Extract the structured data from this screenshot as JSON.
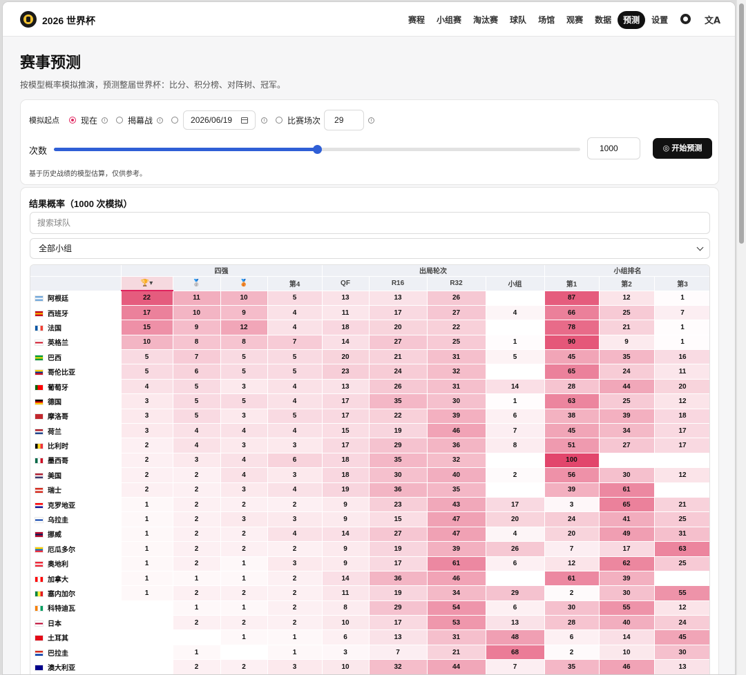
{
  "nav": {
    "brand": "2026 世界杯",
    "links": [
      "赛程",
      "小组赛",
      "淘汰赛",
      "球队",
      "场馆",
      "观赛",
      "数据",
      "预测",
      "设置"
    ],
    "active_index": 7
  },
  "page": {
    "title": "赛事预测",
    "subtitle": "按模型概率模拟推演，预测整届世界杯：比分、积分榜、对阵树、冠军。"
  },
  "controls": {
    "start_label": "模拟起点",
    "opt_now": "现在",
    "opt_opening": "揭幕战",
    "date_value": "2026/06/19",
    "opt_match": "比赛场次",
    "match_value": "29",
    "count_label": "次数",
    "count_value": "1000",
    "slider_fraction": 0.5,
    "start_button": "开始预测",
    "note": "基于历史战绩的模型估算，仅供参考。"
  },
  "results": {
    "title": "结果概率（1000 次模拟）",
    "search_placeholder": "搜索球队",
    "group_select": "全部小组",
    "group_headers": [
      "四强",
      "出局轮次",
      "小组排名"
    ],
    "col_headers": [
      "🏆▾",
      "🥈",
      "🥉",
      "第4",
      "QF",
      "R16",
      "R32",
      "小组",
      "第1",
      "第2",
      "第3"
    ],
    "rows": [
      {
        "team": "阿根廷",
        "flag": "AR",
        "v": [
          22,
          11,
          10,
          5,
          13,
          13,
          26,
          null,
          87,
          12,
          1
        ]
      },
      {
        "team": "西班牙",
        "flag": "ES",
        "v": [
          17,
          10,
          9,
          4,
          11,
          17,
          27,
          4,
          66,
          25,
          7
        ]
      },
      {
        "team": "法国",
        "flag": "FR",
        "v": [
          15,
          9,
          12,
          4,
          18,
          20,
          22,
          null,
          78,
          21,
          1
        ]
      },
      {
        "team": "英格兰",
        "flag": "EN",
        "v": [
          10,
          8,
          8,
          7,
          14,
          27,
          25,
          1,
          90,
          9,
          1
        ]
      },
      {
        "team": "巴西",
        "flag": "BR",
        "v": [
          5,
          7,
          5,
          5,
          20,
          21,
          31,
          5,
          45,
          35,
          16
        ]
      },
      {
        "team": "哥伦比亚",
        "flag": "CO",
        "v": [
          5,
          6,
          5,
          5,
          23,
          24,
          32,
          null,
          65,
          24,
          11
        ]
      },
      {
        "team": "葡萄牙",
        "flag": "PT",
        "v": [
          4,
          5,
          3,
          4,
          13,
          26,
          31,
          14,
          28,
          44,
          20
        ]
      },
      {
        "team": "德国",
        "flag": "DE",
        "v": [
          3,
          5,
          5,
          4,
          17,
          35,
          30,
          1,
          63,
          25,
          12
        ]
      },
      {
        "team": "摩洛哥",
        "flag": "MA",
        "v": [
          3,
          5,
          3,
          5,
          17,
          22,
          39,
          6,
          38,
          39,
          18
        ]
      },
      {
        "team": "荷兰",
        "flag": "NL",
        "v": [
          3,
          4,
          4,
          4,
          15,
          19,
          46,
          7,
          45,
          34,
          17
        ]
      },
      {
        "team": "比利时",
        "flag": "BE",
        "v": [
          2,
          4,
          3,
          3,
          17,
          29,
          36,
          8,
          51,
          27,
          17
        ]
      },
      {
        "team": "墨西哥",
        "flag": "MX",
        "v": [
          2,
          3,
          4,
          6,
          18,
          35,
          32,
          null,
          100,
          null,
          null
        ]
      },
      {
        "team": "美国",
        "flag": "US",
        "v": [
          2,
          2,
          4,
          3,
          18,
          30,
          40,
          2,
          56,
          30,
          12
        ]
      },
      {
        "team": "瑞士",
        "flag": "CH",
        "v": [
          2,
          2,
          3,
          4,
          19,
          36,
          35,
          null,
          39,
          61,
          null
        ]
      },
      {
        "team": "克罗地亚",
        "flag": "HR",
        "v": [
          1,
          2,
          2,
          2,
          9,
          23,
          43,
          17,
          3,
          65,
          21
        ]
      },
      {
        "team": "乌拉圭",
        "flag": "UY",
        "v": [
          1,
          2,
          3,
          3,
          9,
          15,
          47,
          20,
          24,
          41,
          25
        ]
      },
      {
        "team": "挪威",
        "flag": "NO",
        "v": [
          1,
          2,
          2,
          4,
          14,
          27,
          47,
          4,
          20,
          49,
          31
        ]
      },
      {
        "team": "厄瓜多尔",
        "flag": "EC",
        "v": [
          1,
          2,
          2,
          2,
          9,
          19,
          39,
          26,
          7,
          17,
          63
        ]
      },
      {
        "team": "奥地利",
        "flag": "AT",
        "v": [
          1,
          2,
          1,
          3,
          9,
          17,
          61,
          6,
          12,
          62,
          25
        ]
      },
      {
        "team": "加拿大",
        "flag": "CA",
        "v": [
          1,
          1,
          1,
          2,
          14,
          36,
          46,
          null,
          61,
          39,
          null
        ]
      },
      {
        "team": "塞内加尔",
        "flag": "SN",
        "v": [
          1,
          2,
          2,
          2,
          11,
          19,
          34,
          29,
          2,
          30,
          55
        ]
      },
      {
        "team": "科特迪瓦",
        "flag": "CI",
        "v": [
          null,
          1,
          1,
          2,
          8,
          29,
          54,
          6,
          30,
          55,
          12
        ]
      },
      {
        "team": "日本",
        "flag": "JP",
        "v": [
          null,
          2,
          2,
          2,
          10,
          17,
          53,
          13,
          28,
          40,
          24
        ]
      },
      {
        "team": "土耳其",
        "flag": "TR",
        "v": [
          null,
          null,
          1,
          1,
          6,
          13,
          31,
          48,
          6,
          14,
          45
        ]
      },
      {
        "team": "巴拉圭",
        "flag": "PY",
        "v": [
          null,
          1,
          null,
          1,
          3,
          7,
          21,
          68,
          2,
          10,
          30
        ]
      },
      {
        "team": "澳大利亚",
        "flag": "AU",
        "v": [
          null,
          2,
          2,
          3,
          10,
          32,
          44,
          7,
          35,
          46,
          13
        ]
      }
    ]
  },
  "colors": {
    "accent": "#e0245e",
    "slider": "#2f5fd6",
    "dark": "#111111"
  }
}
